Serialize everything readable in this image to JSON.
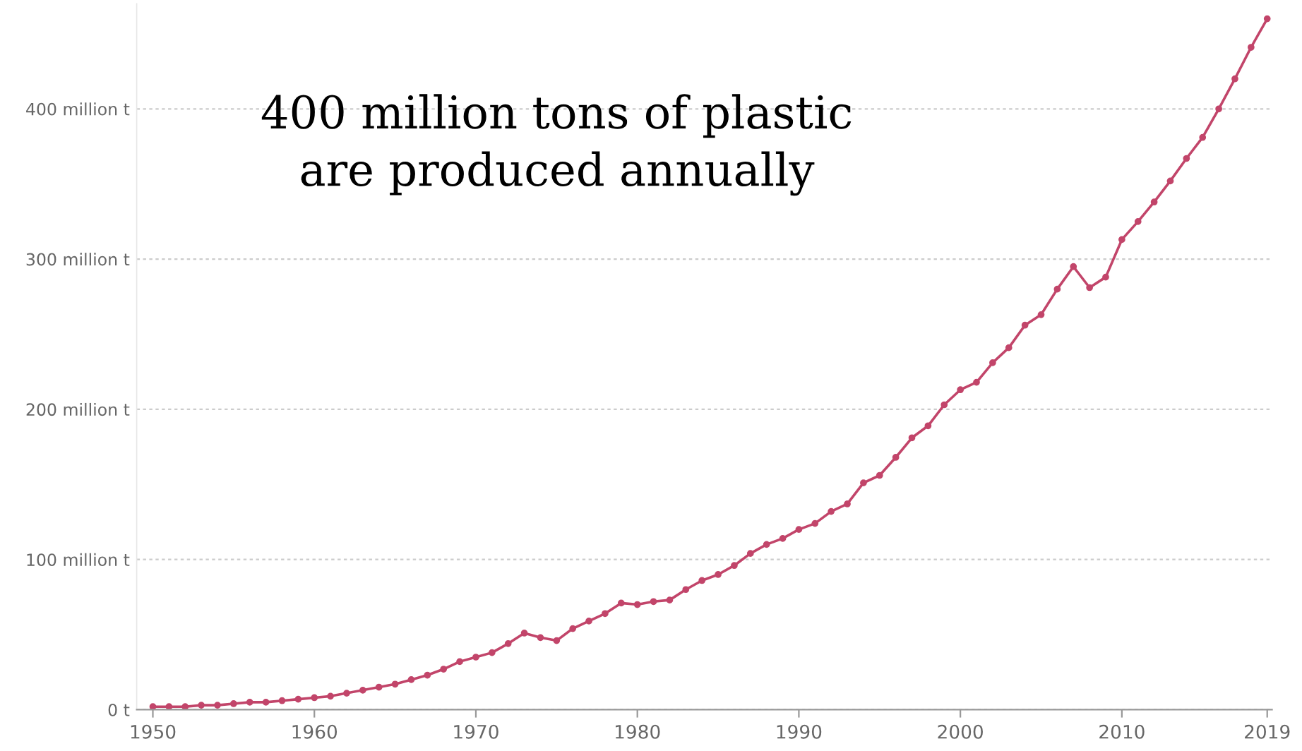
{
  "chart_data": {
    "type": "line",
    "x": [
      1950,
      1951,
      1952,
      1953,
      1954,
      1955,
      1956,
      1957,
      1958,
      1959,
      1960,
      1961,
      1962,
      1963,
      1964,
      1965,
      1966,
      1967,
      1968,
      1969,
      1970,
      1971,
      1972,
      1973,
      1974,
      1975,
      1976,
      1977,
      1978,
      1979,
      1980,
      1981,
      1982,
      1983,
      1984,
      1985,
      1986,
      1987,
      1988,
      1989,
      1990,
      1991,
      1992,
      1993,
      1994,
      1995,
      1996,
      1997,
      1998,
      1999,
      2000,
      2001,
      2002,
      2003,
      2004,
      2005,
      2006,
      2007,
      2008,
      2009,
      2010,
      2011,
      2012,
      2013,
      2014,
      2015,
      2016,
      2017,
      2018,
      2019
    ],
    "series": [
      {
        "color": "#c2456a",
        "values": [
          2,
          2,
          2,
          3,
          3,
          4,
          5,
          5,
          6,
          7,
          8,
          9,
          11,
          13,
          15,
          17,
          20,
          23,
          27,
          32,
          35,
          38,
          44,
          51,
          48,
          46,
          54,
          59,
          64,
          71,
          70,
          72,
          73,
          80,
          86,
          90,
          96,
          104,
          110,
          114,
          120,
          124,
          132,
          137,
          151,
          156,
          168,
          181,
          189,
          203,
          213,
          218,
          231,
          241,
          256,
          263,
          280,
          295,
          281,
          288,
          313,
          325,
          338,
          352,
          367,
          381,
          400,
          420,
          441,
          460
        ]
      }
    ],
    "xlim": [
      1949,
      2019.3
    ],
    "ylim": [
      0,
      470
    ],
    "xticks": [
      1950,
      1960,
      1970,
      1980,
      1990,
      2000,
      2010,
      2019
    ],
    "yticks": [
      {
        "value": 0,
        "label": "0 t"
      },
      {
        "value": 100,
        "label": "100 million t"
      },
      {
        "value": 200,
        "label": "200 million t"
      },
      {
        "value": 300,
        "label": "300 million t"
      },
      {
        "value": 400,
        "label": "400 million t"
      }
    ],
    "grid": "y",
    "marker": "circle",
    "line_style": "solid",
    "annotations": [
      "400 million tons of plastic\nare produced annually"
    ]
  }
}
